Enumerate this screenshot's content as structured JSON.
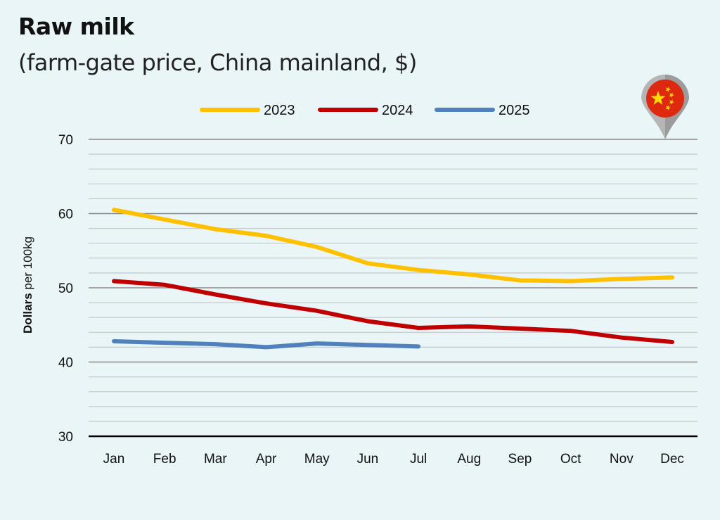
{
  "header": {
    "title": "Raw milk",
    "subtitle": "(farm-gate price, China mainland, $)"
  },
  "badge": {
    "icon": "china-flag-map-pin-icon",
    "colors": {
      "flag": "#de2910",
      "stars": "#ffde00",
      "pin": "#a9a9a9"
    }
  },
  "chart_data": {
    "type": "line",
    "title": "Raw milk",
    "subtitle": "(farm-gate price, China mainland, $)",
    "xlabel": "",
    "ylabel_bold": "Dollars",
    "ylabel_rest": " per 100kg",
    "ylabel": "Dollars per 100kg",
    "ylim": [
      30,
      70
    ],
    "yticks": [
      30,
      40,
      50,
      60,
      70
    ],
    "minor_step": 2,
    "grid": true,
    "legend_position": "top-center",
    "categories": [
      "Jan",
      "Feb",
      "Mar",
      "Apr",
      "May",
      "Jun",
      "Jul",
      "Aug",
      "Sep",
      "Oct",
      "Nov",
      "Dec"
    ],
    "series": [
      {
        "name": "2023",
        "color": "#ffc000",
        "values": [
          60.5,
          59.2,
          57.9,
          57.0,
          55.5,
          53.3,
          52.4,
          51.8,
          51.0,
          50.9,
          51.2,
          51.4
        ]
      },
      {
        "name": "2024",
        "color": "#c00000",
        "values": [
          50.9,
          50.4,
          49.1,
          47.9,
          46.9,
          45.5,
          44.6,
          44.8,
          44.5,
          44.2,
          43.3,
          42.7
        ]
      },
      {
        "name": "2025",
        "color": "#4f81bd",
        "values": [
          42.8,
          42.6,
          42.4,
          42.0,
          42.5,
          42.3,
          42.1
        ]
      }
    ]
  }
}
